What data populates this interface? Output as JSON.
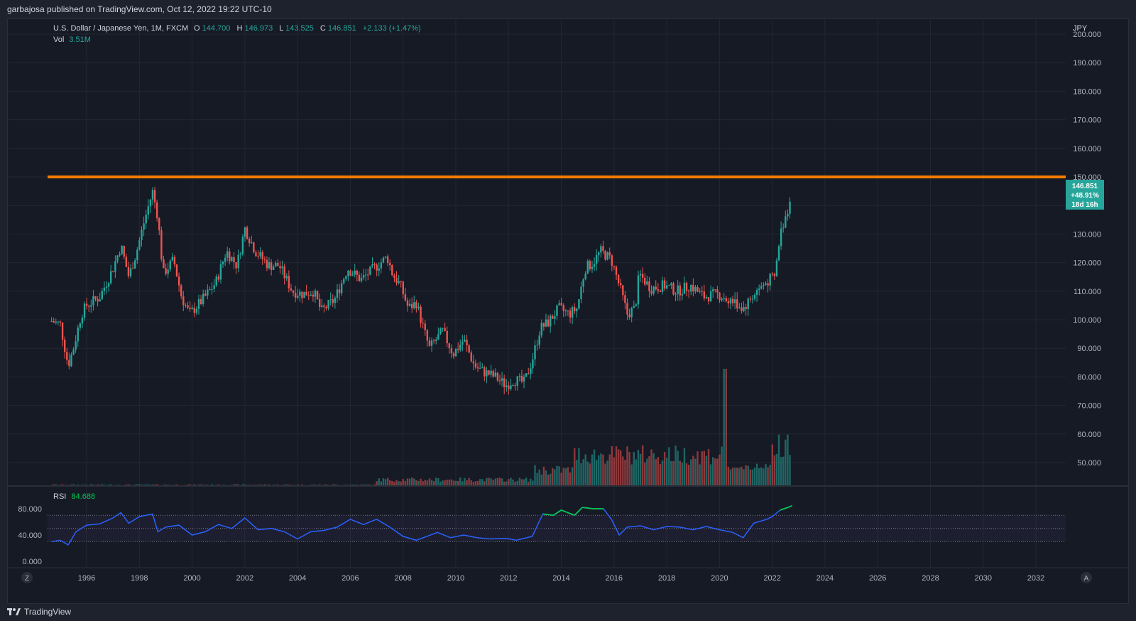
{
  "header": {
    "published": "garbajosa published on TradingView.com, Oct 12, 2022 19:22 UTC-10"
  },
  "legend": {
    "symbol": "U.S. Dollar / Japanese Yen, 1M, FXCM",
    "o_label": "O",
    "o_value": "144.700",
    "h_label": "H",
    "h_value": "146.973",
    "l_label": "L",
    "l_value": "143.525",
    "c_label": "C",
    "c_value": "146.851",
    "change": "+2.133 (+1.47%)",
    "vol_label": "Vol",
    "vol_value": "3.51M"
  },
  "price_axis": {
    "currency": "JPY",
    "ticks": [
      "200.000",
      "190.000",
      "180.000",
      "170.000",
      "160.000",
      "150.000",
      "130.000",
      "120.000",
      "110.000",
      "100.000",
      "90.000",
      "80.000",
      "70.000",
      "60.000",
      "50.000"
    ]
  },
  "last_price_tag": {
    "price": "146.851",
    "change": "+48.91%",
    "countdown": "18d 16h"
  },
  "rsi": {
    "label": "RSI",
    "value": "84.688",
    "ticks": [
      "80.000",
      "40.000",
      "0.000"
    ]
  },
  "time_axis": {
    "ticks": [
      "1996",
      "1998",
      "2000",
      "2002",
      "2004",
      "2006",
      "2008",
      "2010",
      "2012",
      "2014",
      "2016",
      "2018",
      "2020",
      "2022",
      "2024",
      "2026",
      "2028",
      "2030",
      "2032"
    ]
  },
  "corner_buttons": {
    "left": "Z",
    "right": "A"
  },
  "footer": {
    "brand": "TradingView"
  },
  "colors": {
    "up": "#26a69a",
    "down": "#ef5350",
    "hline": "#f57c00",
    "rsi_line": "#2962ff",
    "rsi_ob": "#00c853",
    "rsi_os": "#d50000",
    "background": "#161a25"
  },
  "chart_data": {
    "type": "candlestick",
    "title": "U.S. Dollar / Japanese Yen, 1M, FXCM",
    "xlabel": "",
    "ylabel": "",
    "x": [
      1994.67,
      1995.0,
      1995.3,
      1995.5,
      1995.8,
      1996.0,
      1996.5,
      1997.0,
      1997.3,
      1997.6,
      1997.9,
      1998.2,
      1998.5,
      1998.7,
      1998.9,
      1999.3,
      1999.6,
      1999.9,
      2000.4,
      2000.9,
      2001.3,
      2001.7,
      2002.0,
      2002.4,
      2002.9,
      2003.3,
      2003.8,
      2004.2,
      2004.6,
      2004.9,
      2005.4,
      2005.9,
      2006.4,
      2006.9,
      2007.4,
      2007.6,
      2007.9,
      2008.2,
      2008.5,
      2008.8,
      2009.0,
      2009.5,
      2009.9,
      2010.3,
      2010.7,
      2011.0,
      2011.5,
      2011.9,
      2012.2,
      2012.6,
      2012.9,
      2013.2,
      2013.5,
      2013.9,
      2014.3,
      2014.6,
      2014.9,
      2015.2,
      2015.5,
      2015.9,
      2016.2,
      2016.5,
      2016.8,
      2016.95,
      2017.4,
      2017.9,
      2018.4,
      2018.9,
      2019.4,
      2019.9,
      2020.4,
      2020.9,
      2021.4,
      2021.9,
      2022.1,
      2022.3,
      2022.5,
      2022.6,
      2022.75
    ],
    "close": [
      99.5,
      98.5,
      84.0,
      90.0,
      102.0,
      105.0,
      108.0,
      118.0,
      126.0,
      115.0,
      124.0,
      135.0,
      145.0,
      136.0,
      116.0,
      121.0,
      108.0,
      102.0,
      107.0,
      113.0,
      124.0,
      119.0,
      132.0,
      124.0,
      119.0,
      119.0,
      110.0,
      109.0,
      110.0,
      103.0,
      107.0,
      118.0,
      114.0,
      118.0,
      122.0,
      116.0,
      112.0,
      104.0,
      106.0,
      96.0,
      90.0,
      96.0,
      88.0,
      93.0,
      84.0,
      82.0,
      80.0,
      77.0,
      79.0,
      78.0,
      86.0,
      97.0,
      99.0,
      104.0,
      102.0,
      104.0,
      118.0,
      120.0,
      124.0,
      121.0,
      112.0,
      102.0,
      104.0,
      116.0,
      111.0,
      112.0,
      110.0,
      112.0,
      108.0,
      109.0,
      107.0,
      104.0,
      110.0,
      114.0,
      115.0,
      130.0,
      136.0,
      139.0,
      146.851
    ],
    "ylim": [
      42,
      205
    ],
    "volume_note": "volume bars shown along the bottom of the price pane",
    "hline": 150.0,
    "rsi": {
      "x": [
        1994.67,
        1995.0,
        1995.3,
        1995.6,
        1996.0,
        1996.5,
        1997.0,
        1997.3,
        1997.6,
        1998.0,
        1998.5,
        1998.7,
        1999.0,
        1999.5,
        2000.0,
        2000.5,
        2001.0,
        2001.5,
        2002.0,
        2002.5,
        2003.0,
        2003.5,
        2004.0,
        2004.5,
        2005.0,
        2005.5,
        2006.0,
        2006.5,
        2007.0,
        2007.5,
        2008.0,
        2008.5,
        2008.9,
        2009.3,
        2009.8,
        2010.3,
        2010.8,
        2011.3,
        2011.9,
        2012.3,
        2012.9,
        2013.3,
        2013.7,
        2014.0,
        2014.5,
        2014.8,
        2015.2,
        2015.6,
        2015.9,
        2016.2,
        2016.5,
        2017.0,
        2017.5,
        2018.0,
        2018.5,
        2019.0,
        2019.5,
        2020.0,
        2020.5,
        2020.9,
        2021.3,
        2021.8,
        2022.0,
        2022.3,
        2022.6,
        2022.75
      ],
      "y": [
        30,
        32,
        25,
        45,
        55,
        57,
        66,
        74,
        58,
        68,
        72,
        45,
        52,
        55,
        40,
        45,
        56,
        50,
        66,
        48,
        50,
        45,
        34,
        45,
        47,
        52,
        64,
        56,
        64,
        52,
        38,
        32,
        38,
        44,
        36,
        40,
        36,
        34,
        35,
        32,
        38,
        72,
        70,
        78,
        70,
        82,
        80,
        80,
        64,
        40,
        52,
        54,
        48,
        53,
        52,
        48,
        53,
        48,
        44,
        36,
        58,
        64,
        68,
        78,
        82,
        84.688
      ],
      "ylim": [
        0,
        100
      ],
      "bands": [
        30,
        50,
        70
      ]
    }
  }
}
